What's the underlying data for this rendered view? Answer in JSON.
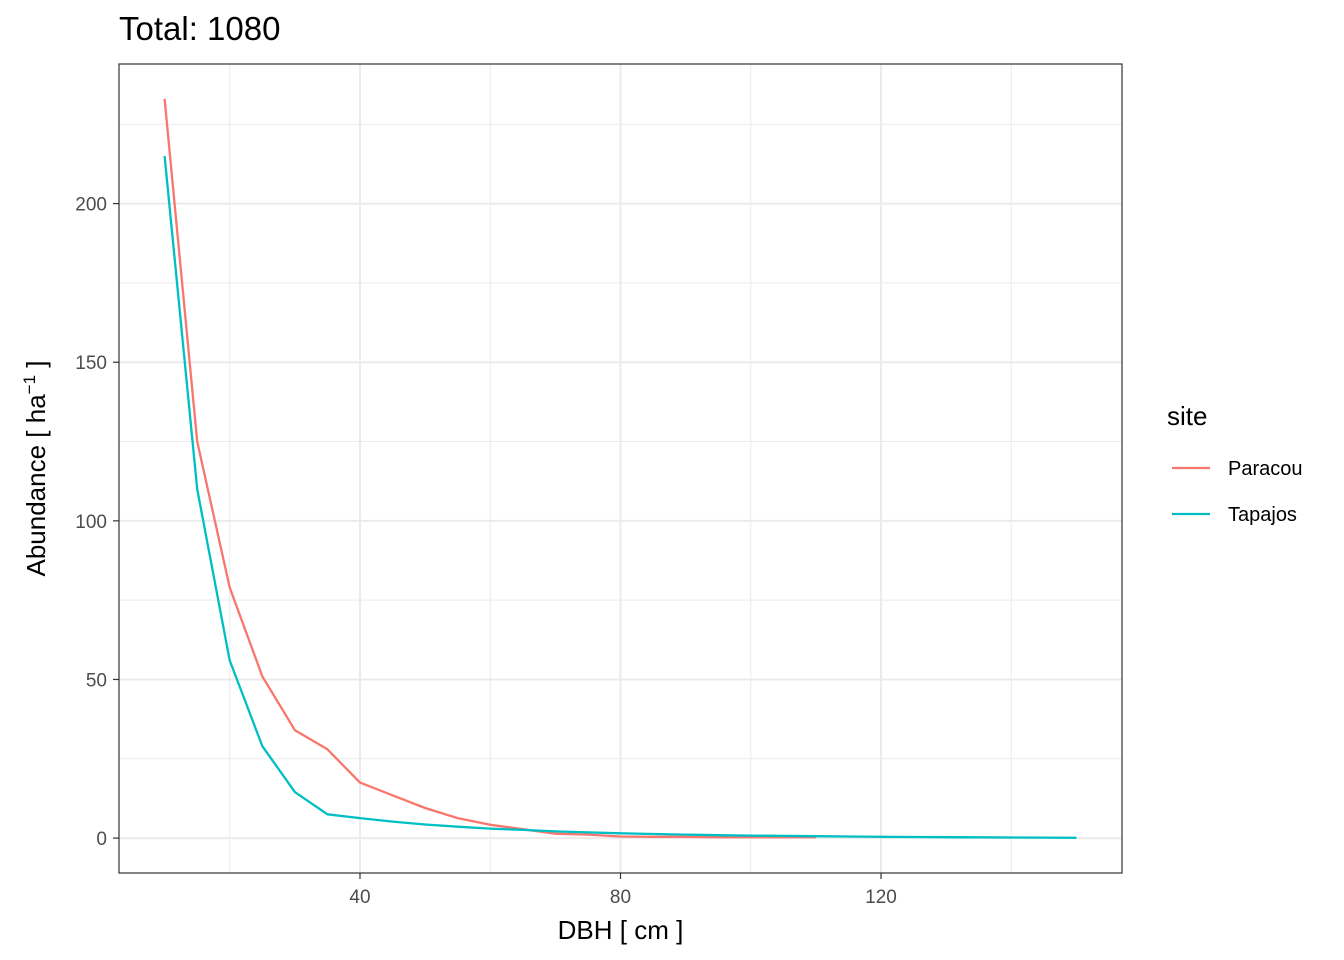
{
  "chart_data": {
    "type": "line",
    "title": "Total: 1080",
    "xlabel": "DBH [ cm ]",
    "ylabel": {
      "main": "Abundance [ ha",
      "superscript": "−1",
      "close": " ]"
    },
    "xlim": [
      3,
      157
    ],
    "ylim": [
      -11,
      244
    ],
    "x_ticks": [
      40,
      80,
      120
    ],
    "x_tick_labels": [
      "40",
      "80",
      "120"
    ],
    "x_minor_ticks": [
      20,
      60,
      100,
      140
    ],
    "y_ticks": [
      0,
      50,
      100,
      150,
      200
    ],
    "y_tick_labels": [
      "0",
      "50",
      "100",
      "150",
      "200"
    ],
    "y_minor_ticks": [
      25,
      75,
      125,
      175,
      225
    ],
    "grid": true,
    "legend": {
      "title": "site",
      "position": "right"
    },
    "series": [
      {
        "name": "Paracou",
        "color": "#F8766D",
        "x": [
          10,
          15,
          20,
          25,
          30,
          35,
          40,
          45,
          50,
          55,
          60,
          65,
          70,
          75,
          80,
          85,
          90,
          95,
          100,
          105,
          110
        ],
        "y": [
          233,
          125,
          79,
          51,
          34,
          28,
          17.5,
          13.5,
          9.5,
          6.3,
          4.2,
          2.8,
          1.4,
          1.1,
          0.5,
          0.4,
          0.4,
          0.3,
          0.3,
          0.3,
          0.3
        ]
      },
      {
        "name": "Tapajos",
        "color": "#00BFC4",
        "x": [
          10,
          15,
          20,
          25,
          30,
          35,
          40,
          45,
          50,
          55,
          60,
          65,
          70,
          75,
          80,
          85,
          90,
          95,
          100,
          105,
          110,
          115,
          120,
          125,
          130,
          135,
          140,
          145,
          150
        ],
        "y": [
          215,
          110,
          56,
          29,
          14.5,
          7.5,
          6.3,
          5.2,
          4.3,
          3.6,
          3.0,
          2.6,
          2.1,
          1.8,
          1.5,
          1.3,
          1.1,
          0.9,
          0.8,
          0.7,
          0.6,
          0.5,
          0.4,
          0.35,
          0.3,
          0.25,
          0.2,
          0.15,
          0.1
        ]
      }
    ]
  }
}
